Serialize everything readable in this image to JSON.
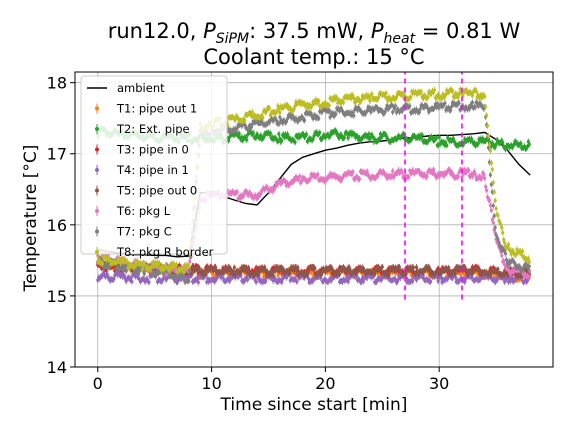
{
  "chart_data": {
    "type": "line",
    "title_line1": "run12.0, $P_{SiPM}$: 37.5 mW, $P_{heat}$ = 0.81 W",
    "title_parts": {
      "prefix": "run12.0, ",
      "p1": "P",
      "p1_sub": "SiPM",
      "p1_val": ": 37.5 mW, ",
      "p2": "P",
      "p2_sub": "heat",
      "p2_val": " = 0.81 W"
    },
    "title_line2": "Coolant temp.: 15 °C",
    "xlabel": "Time since start [min]",
    "ylabel": "Temperature [°C]",
    "xlim": [
      -2,
      40
    ],
    "ylim": [
      14,
      18.15
    ],
    "xticks": [
      0,
      10,
      20,
      30
    ],
    "yticks": [
      14,
      15,
      16,
      17,
      18
    ],
    "grid": true,
    "legend_position": "upper-left",
    "vlines": [
      {
        "x": 27.0,
        "ymin": 14.95,
        "ymax": 18.15,
        "color": "#ff00ff",
        "style": "dashed"
      },
      {
        "x": 32.0,
        "ymin": 14.95,
        "ymax": 18.15,
        "color": "#ff00ff",
        "style": "dashed"
      }
    ],
    "series": [
      {
        "name": "ambient",
        "color": "#000000",
        "style": "line",
        "points": [
          [
            0,
            15.65
          ],
          [
            1,
            15.62
          ],
          [
            2,
            15.6
          ],
          [
            3,
            15.58
          ],
          [
            4,
            15.58
          ],
          [
            5,
            15.57
          ],
          [
            6,
            15.57
          ],
          [
            7,
            15.55
          ],
          [
            8,
            15.56
          ],
          [
            9,
            16.45
          ],
          [
            10,
            16.46
          ],
          [
            11,
            16.4
          ],
          [
            12,
            16.35
          ],
          [
            13,
            16.3
          ],
          [
            14,
            16.28
          ],
          [
            15,
            16.45
          ],
          [
            16,
            16.65
          ],
          [
            17,
            16.85
          ],
          [
            18,
            16.95
          ],
          [
            19,
            17.0
          ],
          [
            20,
            17.05
          ],
          [
            21,
            17.08
          ],
          [
            22,
            17.12
          ],
          [
            23,
            17.15
          ],
          [
            24,
            17.17
          ],
          [
            25,
            17.18
          ],
          [
            26,
            17.2
          ],
          [
            27,
            17.22
          ],
          [
            28,
            17.23
          ],
          [
            29,
            17.25
          ],
          [
            30,
            17.26
          ],
          [
            31,
            17.26
          ],
          [
            32,
            17.27
          ],
          [
            33,
            17.28
          ],
          [
            34,
            17.3
          ],
          [
            35,
            17.2
          ],
          [
            36,
            17.05
          ],
          [
            37,
            16.85
          ],
          [
            38,
            16.7
          ]
        ]
      },
      {
        "name": "T1: pipe out 1",
        "color": "#ff7f0e",
        "style": "errorbar",
        "points": [
          [
            0,
            15.5
          ],
          [
            2,
            15.45
          ],
          [
            4,
            15.4
          ],
          [
            6,
            15.4
          ],
          [
            8,
            15.35
          ],
          [
            10,
            15.35
          ],
          [
            12,
            15.35
          ],
          [
            14,
            15.35
          ],
          [
            16,
            15.35
          ],
          [
            18,
            15.35
          ],
          [
            20,
            15.35
          ],
          [
            22,
            15.35
          ],
          [
            24,
            15.35
          ],
          [
            26,
            15.35
          ],
          [
            28,
            15.35
          ],
          [
            30,
            15.35
          ],
          [
            32,
            15.35
          ],
          [
            34,
            15.35
          ],
          [
            36,
            15.3
          ],
          [
            38,
            15.3
          ]
        ]
      },
      {
        "name": "T2: Ext. pipe",
        "color": "#2ca02c",
        "style": "errorbar",
        "points": [
          [
            0,
            17.35
          ],
          [
            2,
            17.3
          ],
          [
            4,
            17.28
          ],
          [
            6,
            17.25
          ],
          [
            8,
            17.25
          ],
          [
            10,
            17.25
          ],
          [
            12,
            17.25
          ],
          [
            14,
            17.3
          ],
          [
            16,
            17.25
          ],
          [
            18,
            17.25
          ],
          [
            20,
            17.3
          ],
          [
            22,
            17.3
          ],
          [
            24,
            17.25
          ],
          [
            26,
            17.25
          ],
          [
            28,
            17.25
          ],
          [
            30,
            17.2
          ],
          [
            32,
            17.2
          ],
          [
            34,
            17.2
          ],
          [
            36,
            17.15
          ],
          [
            38,
            17.15
          ]
        ]
      },
      {
        "name": "T3: pipe in 0",
        "color": "#d62728",
        "style": "errorbar",
        "points": [
          [
            0,
            15.45
          ],
          [
            2,
            15.42
          ],
          [
            4,
            15.4
          ],
          [
            6,
            15.4
          ],
          [
            8,
            15.4
          ],
          [
            10,
            15.38
          ],
          [
            12,
            15.38
          ],
          [
            14,
            15.38
          ],
          [
            16,
            15.38
          ],
          [
            18,
            15.38
          ],
          [
            20,
            15.38
          ],
          [
            22,
            15.38
          ],
          [
            24,
            15.38
          ],
          [
            26,
            15.38
          ],
          [
            28,
            15.38
          ],
          [
            30,
            15.38
          ],
          [
            32,
            15.38
          ],
          [
            34,
            15.38
          ],
          [
            36,
            15.35
          ],
          [
            38,
            15.35
          ]
        ]
      },
      {
        "name": "T4: pipe in 1",
        "color": "#9467bd",
        "style": "errorbar",
        "points": [
          [
            0,
            15.3
          ],
          [
            2,
            15.3
          ],
          [
            4,
            15.28
          ],
          [
            6,
            15.28
          ],
          [
            8,
            15.28
          ],
          [
            10,
            15.28
          ],
          [
            12,
            15.28
          ],
          [
            14,
            15.28
          ],
          [
            16,
            15.28
          ],
          [
            18,
            15.28
          ],
          [
            20,
            15.28
          ],
          [
            22,
            15.28
          ],
          [
            24,
            15.28
          ],
          [
            26,
            15.28
          ],
          [
            28,
            15.28
          ],
          [
            30,
            15.28
          ],
          [
            32,
            15.28
          ],
          [
            34,
            15.28
          ],
          [
            36,
            15.28
          ],
          [
            38,
            15.28
          ]
        ]
      },
      {
        "name": "T5: pipe out 0",
        "color": "#8c564b",
        "style": "errorbar",
        "points": [
          [
            0,
            15.5
          ],
          [
            2,
            15.45
          ],
          [
            4,
            15.42
          ],
          [
            6,
            15.4
          ],
          [
            8,
            15.38
          ],
          [
            10,
            15.38
          ],
          [
            12,
            15.38
          ],
          [
            14,
            15.38
          ],
          [
            16,
            15.38
          ],
          [
            18,
            15.38
          ],
          [
            20,
            15.38
          ],
          [
            22,
            15.38
          ],
          [
            24,
            15.38
          ],
          [
            26,
            15.38
          ],
          [
            28,
            15.38
          ],
          [
            30,
            15.38
          ],
          [
            32,
            15.38
          ],
          [
            34,
            15.38
          ],
          [
            36,
            15.35
          ],
          [
            38,
            15.35
          ]
        ]
      },
      {
        "name": "T6: pkg L",
        "color": "#e377c2",
        "style": "errorbar",
        "points": [
          [
            0,
            15.6
          ],
          [
            2,
            15.5
          ],
          [
            4,
            15.45
          ],
          [
            6,
            15.4
          ],
          [
            8,
            15.38
          ],
          [
            9,
            16.4
          ],
          [
            10,
            16.45
          ],
          [
            12,
            16.45
          ],
          [
            14,
            16.45
          ],
          [
            16,
            16.6
          ],
          [
            18,
            16.68
          ],
          [
            20,
            16.7
          ],
          [
            22,
            16.72
          ],
          [
            24,
            16.73
          ],
          [
            26,
            16.74
          ],
          [
            28,
            16.75
          ],
          [
            30,
            16.75
          ],
          [
            32,
            16.75
          ],
          [
            33,
            16.74
          ],
          [
            34,
            16.7
          ],
          [
            35,
            15.8
          ],
          [
            36,
            15.4
          ],
          [
            38,
            15.35
          ]
        ]
      },
      {
        "name": "T7: pkg C",
        "color": "#7f7f7f",
        "style": "errorbar",
        "points": [
          [
            0,
            15.5
          ],
          [
            2,
            15.45
          ],
          [
            4,
            15.4
          ],
          [
            6,
            15.35
          ],
          [
            8,
            15.25
          ],
          [
            9,
            17.3
          ],
          [
            10,
            17.35
          ],
          [
            12,
            17.4
          ],
          [
            14,
            17.45
          ],
          [
            16,
            17.5
          ],
          [
            18,
            17.55
          ],
          [
            20,
            17.6
          ],
          [
            22,
            17.62
          ],
          [
            24,
            17.64
          ],
          [
            26,
            17.66
          ],
          [
            28,
            17.67
          ],
          [
            30,
            17.68
          ],
          [
            32,
            17.7
          ],
          [
            33,
            17.7
          ],
          [
            34,
            17.68
          ],
          [
            35,
            15.9
          ],
          [
            36,
            15.5
          ],
          [
            38,
            15.4
          ]
        ]
      },
      {
        "name": "T8: pkg R border",
        "color": "#bcbd22",
        "style": "errorbar",
        "points": [
          [
            0,
            15.55
          ],
          [
            2,
            15.5
          ],
          [
            4,
            15.45
          ],
          [
            6,
            15.45
          ],
          [
            8,
            15.4
          ],
          [
            9,
            17.4
          ],
          [
            10,
            17.45
          ],
          [
            12,
            17.5
          ],
          [
            14,
            17.58
          ],
          [
            16,
            17.65
          ],
          [
            18,
            17.72
          ],
          [
            20,
            17.75
          ],
          [
            22,
            17.8
          ],
          [
            24,
            17.82
          ],
          [
            26,
            17.84
          ],
          [
            28,
            17.85
          ],
          [
            30,
            17.87
          ],
          [
            32,
            17.88
          ],
          [
            33,
            17.88
          ],
          [
            34,
            17.85
          ],
          [
            35,
            16.2
          ],
          [
            36,
            15.7
          ],
          [
            38,
            15.55
          ]
        ]
      }
    ]
  }
}
